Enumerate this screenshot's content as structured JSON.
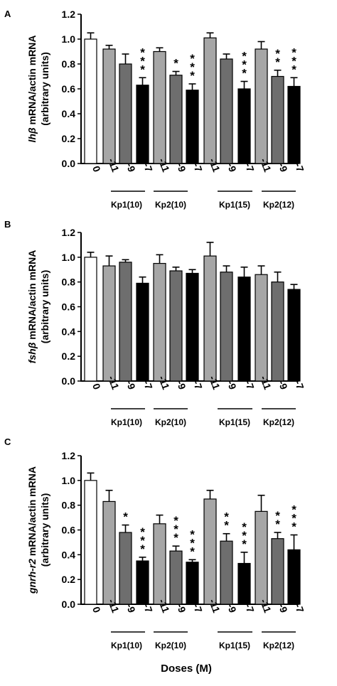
{
  "xlabel": "Doses (M)",
  "dose_labels": [
    "0",
    "-11",
    "-9",
    "-7",
    "-11",
    "-9",
    "-7",
    "-11",
    "-9",
    "-7",
    "-11",
    "-9",
    "-7"
  ],
  "groups": [
    "Kp1(10)",
    "Kp2(10)",
    "Kp1(15)",
    "Kp2(12)"
  ],
  "bar_colors": [
    "#ffffff",
    "#a6a6a6",
    "#6e6e6e",
    "#000000",
    "#a6a6a6",
    "#6e6e6e",
    "#000000",
    "#a6a6a6",
    "#6e6e6e",
    "#000000",
    "#a6a6a6",
    "#6e6e6e",
    "#000000"
  ],
  "chart_data": [
    {
      "type": "bar",
      "panel": "A",
      "ylabel_gene": "lhβ",
      "ylabel_rest": " mRNA/actin mRNA",
      "ylabel2": "(arbitrary units)",
      "ylim": [
        0,
        1.2
      ],
      "yticks": [
        "0.0",
        "0.2",
        "0.4",
        "0.6",
        "0.8",
        "1.0",
        "1.2"
      ],
      "categories": [
        "0",
        "-11",
        "-9",
        "-7",
        "-11",
        "-9",
        "-7",
        "-11",
        "-9",
        "-7",
        "-11",
        "-9",
        "-7"
      ],
      "values": [
        1.0,
        0.92,
        0.8,
        0.63,
        0.9,
        0.71,
        0.59,
        1.01,
        0.84,
        0.6,
        0.92,
        0.7,
        0.62
      ],
      "errors": [
        0.05,
        0.03,
        0.08,
        0.06,
        0.03,
        0.03,
        0.05,
        0.04,
        0.04,
        0.06,
        0.06,
        0.05,
        0.07
      ],
      "stars": [
        "",
        "",
        "",
        "***",
        "",
        "*",
        "***",
        "",
        "",
        "***",
        "",
        "**",
        "***"
      ]
    },
    {
      "type": "bar",
      "panel": "B",
      "ylabel_gene": "fshβ",
      "ylabel_rest": " mRNA/actin mRNA",
      "ylabel2": "(arbitrary units)",
      "ylim": [
        0,
        1.2
      ],
      "yticks": [
        "0.0",
        "0.2",
        "0.4",
        "0.6",
        "0.8",
        "1.0",
        "1.2"
      ],
      "categories": [
        "0",
        "-11",
        "-9",
        "-7",
        "-11",
        "-9",
        "-7",
        "-11",
        "-9",
        "-7",
        "-11",
        "-9",
        "-7"
      ],
      "values": [
        1.0,
        0.93,
        0.96,
        0.79,
        0.95,
        0.89,
        0.87,
        1.01,
        0.88,
        0.84,
        0.86,
        0.8,
        0.74
      ],
      "errors": [
        0.04,
        0.08,
        0.02,
        0.05,
        0.07,
        0.03,
        0.03,
        0.11,
        0.05,
        0.08,
        0.07,
        0.08,
        0.04
      ],
      "stars": [
        "",
        "",
        "",
        "",
        "",
        "",
        "",
        "",
        "",
        "",
        "",
        "",
        ""
      ]
    },
    {
      "type": "bar",
      "panel": "C",
      "ylabel_gene": "gnrh-r2",
      "ylabel_rest": " mRNA/actin mRNA",
      "ylabel2": "(arbitrary units)",
      "ylim": [
        0,
        1.2
      ],
      "yticks": [
        "0.0",
        "0.2",
        "0.4",
        "0.6",
        "0.8",
        "1.0",
        "1.2"
      ],
      "categories": [
        "0",
        "-11",
        "-9",
        "-7",
        "-11",
        "-9",
        "-7",
        "-11",
        "-9",
        "-7",
        "-11",
        "-9",
        "-7"
      ],
      "values": [
        1.0,
        0.83,
        0.58,
        0.35,
        0.65,
        0.43,
        0.34,
        0.85,
        0.51,
        0.33,
        0.75,
        0.53,
        0.44
      ],
      "errors": [
        0.06,
        0.09,
        0.06,
        0.03,
        0.07,
        0.04,
        0.02,
        0.07,
        0.06,
        0.09,
        0.13,
        0.05,
        0.12
      ],
      "stars": [
        "",
        "",
        "*",
        "***",
        "",
        "***",
        "***",
        "",
        "**",
        "***",
        "",
        "**",
        "***"
      ]
    }
  ]
}
